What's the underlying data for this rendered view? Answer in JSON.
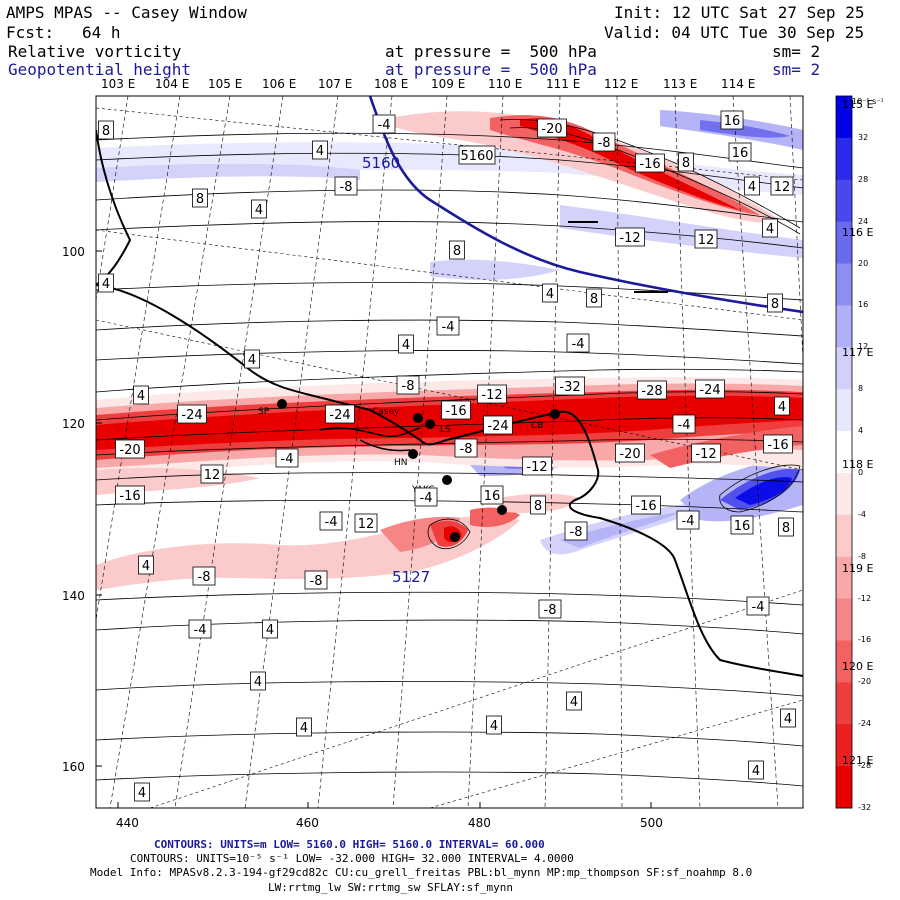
{
  "header": {
    "title": "AMPS MPAS -- Casey Window",
    "init": "Init: 12 UTC Sat 27 Sep 25",
    "fcst_label": "Fcst:",
    "fcst_value": "64 h",
    "valid": "Valid: 04 UTC Tue 30 Sep 25",
    "field1": {
      "name": "Relative vorticity",
      "level": "at pressure =  500 hPa",
      "sm": "sm= 2"
    },
    "field2": {
      "name": "Geopotential height",
      "level": "at pressure =  500 hPa",
      "sm": "sm= 2"
    }
  },
  "top_lon_labels": [
    "103 E",
    "104 E",
    "105 E",
    "106 E",
    "107 E",
    "108 E",
    "109 E",
    "110 E",
    "111 E",
    "112 E",
    "113 E",
    "114 E"
  ],
  "right_lon_labels": [
    "115 E",
    "116 E",
    "117 E",
    "118 E",
    "119 E",
    "120 E",
    "121 E"
  ],
  "left_axis": [
    "100",
    "120",
    "140",
    "160"
  ],
  "bottom_axis": [
    "440",
    "460",
    "480",
    "500"
  ],
  "colorbar": {
    "units": "10⁻⁵ s⁻¹",
    "levels": [
      "32",
      "28",
      "24",
      "20",
      "16",
      "12",
      "8",
      "4",
      "0",
      "-4",
      "-8",
      "-12",
      "-16",
      "-20",
      "-24",
      "-28",
      "-32"
    ],
    "colors": [
      "#0000e8",
      "#2a2aea",
      "#4848ec",
      "#6a6aee",
      "#8e8ef2",
      "#b0b0f6",
      "#d0d0fa",
      "#e8e8fd",
      "#ffffff",
      "#fde8e8",
      "#fbcaca",
      "#f8a8a8",
      "#f68686",
      "#f26262",
      "#ef3e3e",
      "#ec2020",
      "#e80000"
    ]
  },
  "stations": [
    "SP",
    "Casey",
    "HN",
    "YAKC",
    "CB",
    "LS"
  ],
  "height_labels": [
    "5160",
    "5127"
  ],
  "vorticity_labels": [
    "8",
    "-4",
    "4",
    "5160",
    "-20",
    "-8",
    "-16",
    "8",
    "16",
    "16",
    "4",
    "12",
    "-8",
    "8",
    "4",
    "-12",
    "12",
    "4",
    "8",
    "4",
    "8",
    "8",
    "-4",
    "4",
    "-4",
    "4",
    "4",
    "-8",
    "-12",
    "-32",
    "-28",
    "-24",
    "4",
    "-24",
    "-24",
    "-16",
    "-4",
    "-16",
    "-24",
    "-20",
    "-12",
    "-4",
    "-20",
    "-8",
    "12",
    "-12",
    "-16",
    "-4",
    "16",
    "8",
    "-4",
    "-8",
    "-16",
    "-4",
    "16",
    "12",
    "8",
    "4",
    "-8",
    "-8",
    "-8",
    "-4",
    "-4",
    "4",
    "4",
    "4",
    "4",
    "4",
    "4",
    "4",
    "4",
    "4"
  ],
  "footer": {
    "contours_m": "CONTOURS:  UNITS=m  LOW=  5160.0        HIGH=  5160.0        INTERVAL=    60.000",
    "contours_vort": "CONTOURS:  UNITS=10⁻⁵ s⁻¹   LOW= -32.000      HIGH=  32.000      INTERVAL=   4.0000",
    "model_info": "Model Info: MPASv8.2.3-194-gf29cd82c CU:cu_grell_freitas PBL:bl_mynn MP:mp_thompson SF:sf_noahmp 8.0",
    "physics": "LW:rrtmg_lw SW:rrtmg_sw SFLAY:sf_mynn"
  }
}
